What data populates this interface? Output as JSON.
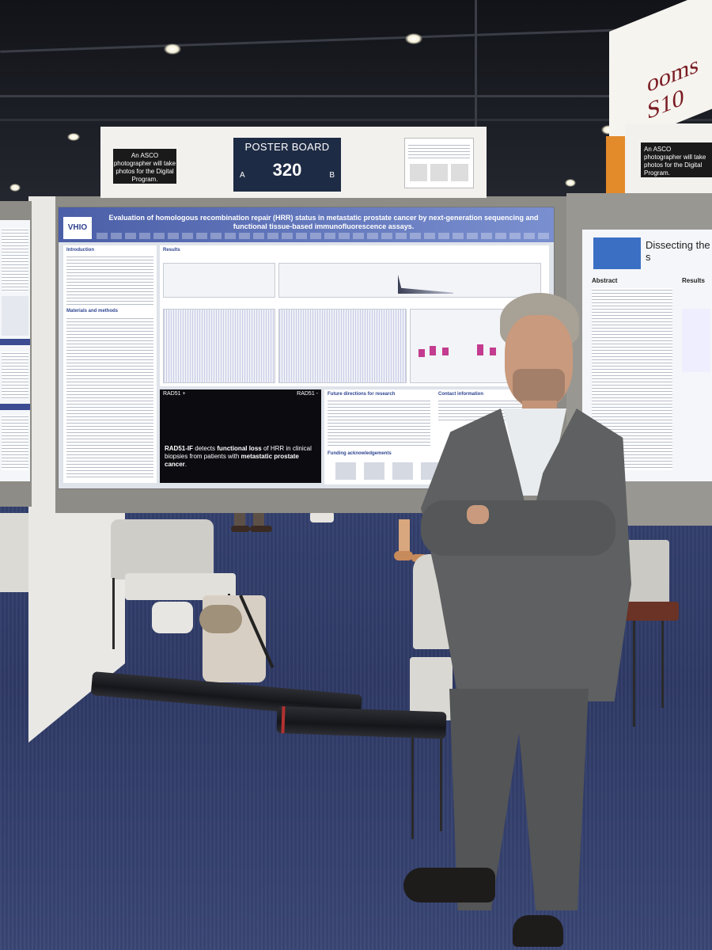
{
  "sign": {
    "title": "POSTER BOARD",
    "number": "320",
    "side_left": "A",
    "side_right": "B",
    "photographer_note": "An ASCO photographer will take photos for the Digital Program."
  },
  "right_sign": {
    "photographer_note": "An ASCO photographer will take photos for the Digital Program.",
    "rooms_text": "ooms S10"
  },
  "poster": {
    "logo": "VHIO",
    "title": "Evaluation of homologous recombination repair (HRR) status in metastatic prostate cancer by next-generation sequencing and functional tissue-based immunofluorescence assays.",
    "sections": {
      "introduction": "Introduction",
      "materials": "Materials and methods",
      "results": "Results",
      "future": "Future directions for research",
      "contact": "Contact information",
      "funding": "Funding acknowledgements"
    },
    "rad_plus": "RAD51 +",
    "rad_minus": "RAD51 -",
    "highlight_1": "RAD51-IF",
    "highlight_2": " detects ",
    "highlight_3": "functional loss",
    "highlight_4": " of HRR",
    "highlight_5": " in clinical biopsies from patients with ",
    "highlight_6": "metastatic prostate cancer",
    "highlight_7": "."
  },
  "side_poster": {
    "title": "Dissecting the s",
    "abstract": "Abstract",
    "results": "Results"
  },
  "colors": {
    "poster_header": "#4b5fa8",
    "sign_dark": "#1e2b44",
    "carpet": "#34406e",
    "suit": "#5b5d5e"
  }
}
